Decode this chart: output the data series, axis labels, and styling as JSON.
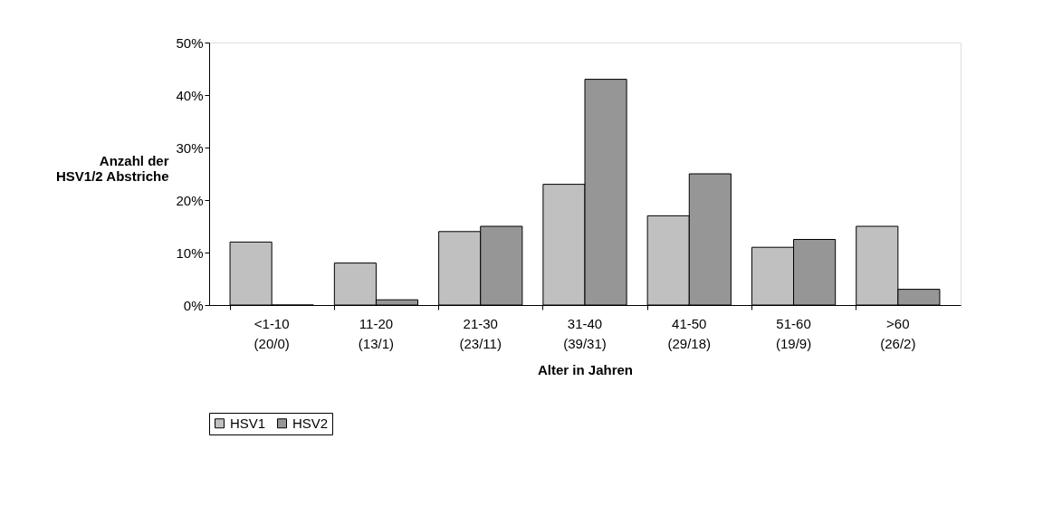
{
  "chart_data": {
    "type": "bar",
    "categories": [
      "<1-10\n(20/0)",
      "11-20\n(13/1)",
      "21-30\n(23/11)",
      "31-40\n(39/31)",
      "41-50\n(29/18)",
      "51-60\n(19/9)",
      ">60\n(26/2)"
    ],
    "series": [
      {
        "name": "HSV1",
        "color": "#c0c0c0",
        "values": [
          12,
          8,
          14,
          23,
          17,
          11,
          15
        ]
      },
      {
        "name": "HSV2",
        "color": "#969696",
        "values": [
          0,
          1,
          15,
          43,
          25,
          12.5,
          3
        ]
      }
    ],
    "xlabel": "Alter in Jahren",
    "ylabel": "Anzahl der\nHSV1/2 Abstriche",
    "ylim": [
      0,
      50
    ],
    "yticks": [
      {
        "value": 0,
        "label": "0%"
      },
      {
        "value": 10,
        "label": "10%"
      },
      {
        "value": 20,
        "label": "20%"
      },
      {
        "value": 30,
        "label": "30%"
      },
      {
        "value": 40,
        "label": "40%"
      },
      {
        "value": 50,
        "label": "50%"
      }
    ],
    "grid": false,
    "legend": "bottom"
  }
}
